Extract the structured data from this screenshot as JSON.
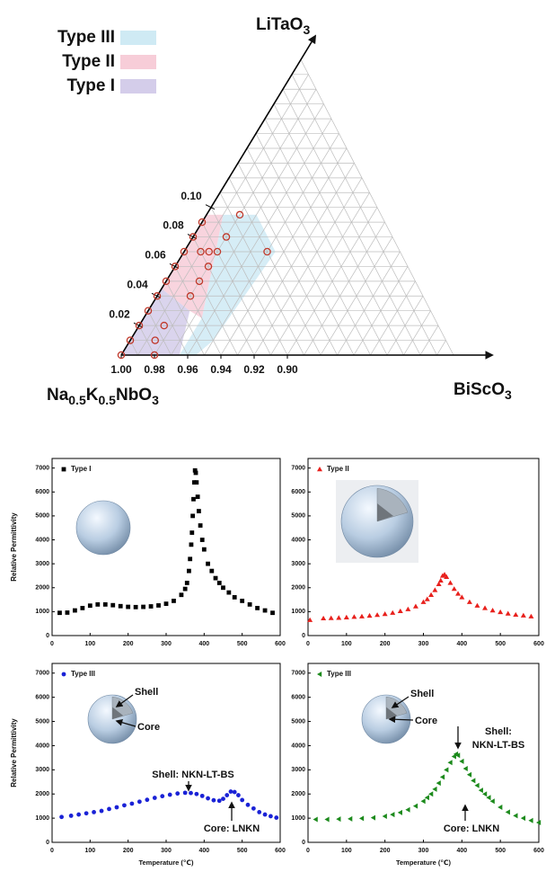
{
  "chart_data": [
    {
      "type": "ternary",
      "apex_labels": {
        "top": [
          "LiTaO",
          "3"
        ],
        "left": [
          "Na",
          "0.5",
          "K",
          "0.5",
          "NbO",
          "3"
        ],
        "right": [
          "BiScO",
          "3"
        ]
      },
      "range": [
        0,
        0.2
      ],
      "grid": true,
      "lt_ticks": [
        0.02,
        0.04,
        0.06,
        0.08,
        {
          "value": 0.1,
          "label": "0.10"
        }
      ],
      "nkn_ticks": [
        {
          "value": 1,
          "label": "1.00"
        },
        0.98,
        0.96,
        0.94,
        0.92,
        {
          "value": 0.9,
          "label": "0.90"
        }
      ],
      "regions": [
        {
          "name": "Type III",
          "color": "#cfeaf4",
          "lt": [
            0.095,
            0.095,
            0.07,
            0.01,
            0,
            0,
            0.025
          ],
          "nkn": [
            0.895,
            0.875,
            0.875,
            0.94,
            0.955,
            0.965,
            0.94
          ]
        },
        {
          "name": "Type II",
          "color": "#f7cdd8",
          "lt": [
            0.045,
            0.03,
            0.025,
            0.095,
            0.095
          ],
          "nkn": [
            0.955,
            0.945,
            0.94,
            0.895,
            0.905
          ]
        },
        {
          "name": "Type I",
          "color": "#d4cdea",
          "lt": [
            0,
            0,
            0.03,
            0.045
          ],
          "nkn": [
            1,
            0.965,
            0.945,
            0.955
          ]
        }
      ],
      "points": {
        "color": "#c0392b",
        "lt": [
          0,
          0.01,
          0.02,
          0.03,
          0.04,
          0.05,
          0.06,
          0.07,
          0.08,
          0.09,
          0,
          0.01,
          0.02,
          0.04,
          0.05,
          0.06,
          0.07,
          0.08,
          0.095,
          0.07,
          0.07,
          0.07
        ],
        "nkn": [
          1,
          0.99,
          0.98,
          0.97,
          0.96,
          0.95,
          0.94,
          0.93,
          0.92,
          0.91,
          0.98,
          0.975,
          0.965,
          0.94,
          0.93,
          0.92,
          0.91,
          0.9,
          0.885,
          0.88,
          0.915,
          0.92
        ]
      }
    },
    {
      "type": "scatter",
      "marker": "square",
      "x": [
        20,
        40,
        60,
        80,
        100,
        120,
        140,
        160,
        180,
        200,
        220,
        240,
        260,
        280,
        300,
        320,
        340,
        350,
        355,
        360,
        363,
        366,
        368,
        370,
        372,
        374,
        376,
        378,
        380,
        383,
        386,
        390,
        395,
        400,
        410,
        420,
        430,
        440,
        450,
        465,
        480,
        500,
        520,
        540,
        560,
        580
      ],
      "series": [
        {
          "name": "Type I",
          "color": "#000000",
          "values": [
            950,
            960,
            1050,
            1150,
            1250,
            1300,
            1300,
            1270,
            1230,
            1200,
            1190,
            1200,
            1220,
            1260,
            1330,
            1450,
            1700,
            1950,
            2200,
            2700,
            3200,
            3800,
            4300,
            5000,
            5700,
            6400,
            6900,
            6800,
            6400,
            5800,
            5200,
            4600,
            4000,
            3600,
            3000,
            2700,
            2400,
            2200,
            2000,
            1800,
            1600,
            1450,
            1300,
            1150,
            1050,
            950
          ]
        }
      ],
      "xlim": [
        0,
        600
      ],
      "ylim": [
        0,
        7400
      ],
      "xticks": [
        0,
        100,
        200,
        300,
        400,
        500,
        600
      ],
      "yticks": [
        0,
        1000,
        2000,
        3000,
        4000,
        5000,
        6000,
        7000
      ],
      "ylabel": "Relative Permittivity"
    },
    {
      "type": "scatter",
      "marker": "triangle",
      "x": [
        5,
        40,
        60,
        80,
        100,
        120,
        140,
        160,
        180,
        200,
        220,
        240,
        260,
        280,
        300,
        310,
        320,
        330,
        340,
        345,
        350,
        355,
        360,
        370,
        380,
        390,
        400,
        420,
        440,
        460,
        480,
        500,
        520,
        540,
        560,
        580
      ],
      "series": [
        {
          "name": "Type II",
          "color": "#e8201c",
          "values": [
            650,
            720,
            730,
            740,
            760,
            780,
            800,
            830,
            860,
            900,
            950,
            1020,
            1100,
            1220,
            1400,
            1520,
            1700,
            1900,
            2150,
            2300,
            2500,
            2550,
            2450,
            2200,
            1950,
            1750,
            1600,
            1400,
            1250,
            1150,
            1050,
            980,
            920,
            870,
            840,
            800
          ]
        }
      ],
      "xlim": [
        0,
        600
      ],
      "ylim": [
        0,
        7400
      ],
      "xticks": [
        0,
        100,
        200,
        300,
        400,
        500,
        600
      ],
      "yticks": [
        0,
        1000,
        2000,
        3000,
        4000,
        5000,
        6000,
        7000
      ]
    },
    {
      "type": "scatter",
      "marker": "circle",
      "x": [
        25,
        50,
        70,
        90,
        110,
        130,
        150,
        170,
        190,
        210,
        230,
        250,
        270,
        290,
        310,
        330,
        350,
        365,
        380,
        395,
        410,
        425,
        440,
        450,
        460,
        470,
        480,
        490,
        500,
        515,
        530,
        545,
        560,
        575,
        590
      ],
      "series": [
        {
          "name": "Type III",
          "color": "#1a22d6",
          "values": [
            1050,
            1100,
            1150,
            1200,
            1250,
            1300,
            1380,
            1450,
            1530,
            1600,
            1680,
            1760,
            1840,
            1910,
            1970,
            2020,
            2050,
            2040,
            2000,
            1920,
            1820,
            1740,
            1720,
            1800,
            1950,
            2100,
            2080,
            1950,
            1750,
            1550,
            1400,
            1250,
            1150,
            1080,
            1020
          ]
        }
      ],
      "xlim": [
        0,
        600
      ],
      "ylim": [
        0,
        7400
      ],
      "xticks": [
        0,
        100,
        200,
        300,
        400,
        500,
        600
      ],
      "yticks": [
        0,
        1000,
        2000,
        3000,
        4000,
        5000,
        6000,
        7000
      ],
      "ylabel": "Relative Permittivity",
      "xlabel": "Temperature (℃)",
      "annotations": [
        "Shell",
        "Core",
        "Shell: NKN-LT-BS",
        "Core: LNKN"
      ]
    },
    {
      "type": "scatter",
      "marker": "triangle-left",
      "x": [
        20,
        50,
        80,
        110,
        140,
        170,
        200,
        220,
        240,
        260,
        280,
        300,
        310,
        320,
        330,
        340,
        350,
        360,
        370,
        380,
        385,
        390,
        400,
        410,
        420,
        430,
        440,
        450,
        460,
        470,
        480,
        500,
        520,
        540,
        560,
        580,
        600
      ],
      "series": [
        {
          "name": "Type III",
          "color": "#1c8a1c",
          "values": [
            950,
            950,
            960,
            970,
            990,
            1020,
            1080,
            1150,
            1230,
            1350,
            1500,
            1700,
            1850,
            2000,
            2200,
            2450,
            2700,
            3000,
            3300,
            3550,
            3650,
            3600,
            3350,
            3050,
            2800,
            2550,
            2350,
            2150,
            2000,
            1850,
            1700,
            1450,
            1250,
            1100,
            1000,
            900,
            820
          ]
        }
      ],
      "xlim": [
        0,
        600
      ],
      "ylim": [
        0,
        7400
      ],
      "xticks": [
        0,
        100,
        200,
        300,
        400,
        500,
        600
      ],
      "yticks": [
        0,
        1000,
        2000,
        3000,
        4000,
        5000,
        6000,
        7000
      ],
      "xlabel": "Temperature (℃)",
      "annotations": [
        "Shell",
        "Core",
        "Shell:",
        "NKN-LT-BS",
        "Core: LNKN"
      ]
    }
  ]
}
